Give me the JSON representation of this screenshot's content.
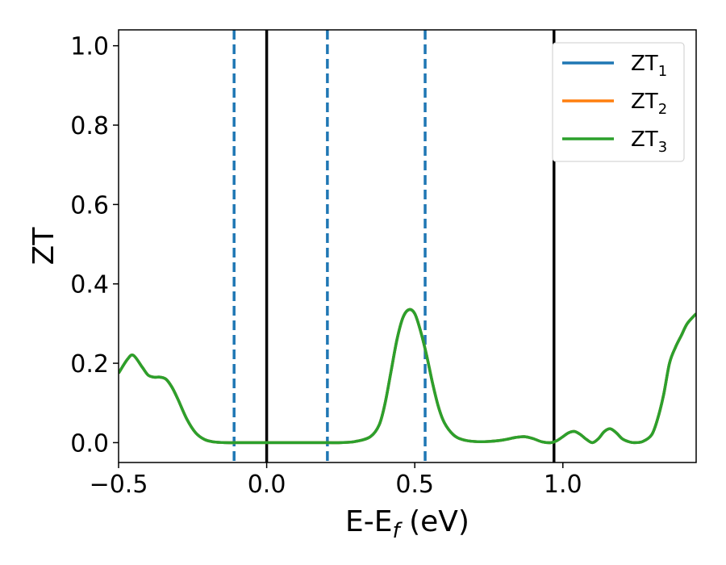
{
  "chart_data": {
    "type": "line",
    "title": "",
    "xlabel": "E-E",
    "xlabel_sub": "f",
    "xlabel_unit": " (eV)",
    "ylabel": "ZT",
    "xlim": [
      -0.5,
      1.45
    ],
    "ylim": [
      -0.05,
      1.04
    ],
    "xticks": [
      -0.5,
      0.0,
      0.5,
      1.0
    ],
    "xtick_labels": [
      "−0.5",
      "0.0",
      "0.5",
      "1.0"
    ],
    "yticks": [
      0.0,
      0.2,
      0.4,
      0.6,
      0.8,
      1.0
    ],
    "ytick_labels": [
      "0.0",
      "0.2",
      "0.4",
      "0.6",
      "0.8",
      "1.0"
    ],
    "grid": false,
    "legend_position": "top-right",
    "vlines_solid": [
      0.0,
      0.97
    ],
    "vlines_dashed": [
      -0.11,
      0.205,
      0.535
    ],
    "colors": {
      "ZT1": "#1f77b4",
      "ZT2": "#ff7f0e",
      "ZT3": "#2ca02c",
      "vline_solid": "#000000",
      "vline_dashed": "#1f77b4"
    },
    "series": [
      {
        "name": "ZT",
        "sub": "1",
        "color": "#1f77b4",
        "x": [
          -0.5,
          -0.47,
          -0.45,
          -0.42,
          -0.4,
          -0.38,
          -0.36,
          -0.34,
          -0.32,
          -0.3,
          -0.27,
          -0.24,
          -0.21,
          -0.18,
          -0.14,
          -0.1,
          -0.05,
          0.0,
          0.1,
          0.2,
          0.25,
          0.3,
          0.35,
          0.38,
          0.4,
          0.42,
          0.44,
          0.46,
          0.48,
          0.5,
          0.52,
          0.54,
          0.56,
          0.58,
          0.6,
          0.63,
          0.66,
          0.7,
          0.75,
          0.8,
          0.84,
          0.87,
          0.9,
          0.93,
          0.96,
          0.98,
          1.0,
          1.02,
          1.04,
          1.06,
          1.08,
          1.1,
          1.12,
          1.14,
          1.16,
          1.18,
          1.2,
          1.22,
          1.24,
          1.27,
          1.3,
          1.32,
          1.34,
          1.36,
          1.38,
          1.4,
          1.42,
          1.45
        ],
        "values": [
          0.175,
          0.21,
          0.22,
          0.19,
          0.17,
          0.165,
          0.165,
          0.16,
          0.14,
          0.11,
          0.06,
          0.025,
          0.008,
          0.002,
          0.0,
          0.0,
          0.0,
          0.0,
          0.0,
          0.0,
          0.0,
          0.003,
          0.015,
          0.045,
          0.1,
          0.18,
          0.26,
          0.315,
          0.335,
          0.325,
          0.28,
          0.22,
          0.15,
          0.09,
          0.05,
          0.02,
          0.008,
          0.003,
          0.003,
          0.007,
          0.013,
          0.015,
          0.01,
          0.002,
          0.0,
          0.005,
          0.015,
          0.025,
          0.028,
          0.02,
          0.008,
          0.0,
          0.01,
          0.028,
          0.035,
          0.025,
          0.01,
          0.003,
          0.0,
          0.003,
          0.02,
          0.06,
          0.12,
          0.2,
          0.24,
          0.27,
          0.3,
          0.325
        ]
      },
      {
        "name": "ZT",
        "sub": "2",
        "color": "#ff7f0e",
        "x": [
          -0.5,
          -0.47,
          -0.45,
          -0.42,
          -0.4,
          -0.38,
          -0.36,
          -0.34,
          -0.32,
          -0.3,
          -0.27,
          -0.24,
          -0.21,
          -0.18,
          -0.14,
          -0.1,
          -0.05,
          0.0,
          0.1,
          0.2,
          0.25,
          0.3,
          0.35,
          0.38,
          0.4,
          0.42,
          0.44,
          0.46,
          0.48,
          0.5,
          0.52,
          0.54,
          0.56,
          0.58,
          0.6,
          0.63,
          0.66,
          0.7,
          0.75,
          0.8,
          0.84,
          0.87,
          0.9,
          0.93,
          0.96,
          0.98,
          1.0,
          1.02,
          1.04,
          1.06,
          1.08,
          1.1,
          1.12,
          1.14,
          1.16,
          1.18,
          1.2,
          1.22,
          1.24,
          1.27,
          1.3,
          1.32,
          1.34,
          1.36,
          1.38,
          1.4,
          1.42,
          1.45
        ],
        "values": [
          0.175,
          0.21,
          0.22,
          0.19,
          0.17,
          0.165,
          0.165,
          0.16,
          0.14,
          0.11,
          0.06,
          0.025,
          0.008,
          0.002,
          0.0,
          0.0,
          0.0,
          0.0,
          0.0,
          0.0,
          0.0,
          0.003,
          0.015,
          0.045,
          0.1,
          0.18,
          0.26,
          0.315,
          0.335,
          0.325,
          0.28,
          0.22,
          0.15,
          0.09,
          0.05,
          0.02,
          0.008,
          0.003,
          0.003,
          0.007,
          0.013,
          0.015,
          0.01,
          0.002,
          0.0,
          0.005,
          0.015,
          0.025,
          0.028,
          0.02,
          0.008,
          0.0,
          0.01,
          0.028,
          0.035,
          0.025,
          0.01,
          0.003,
          0.0,
          0.003,
          0.02,
          0.06,
          0.12,
          0.2,
          0.24,
          0.27,
          0.3,
          0.325
        ]
      },
      {
        "name": "ZT",
        "sub": "3",
        "color": "#2ca02c",
        "x": [
          -0.5,
          -0.47,
          -0.45,
          -0.42,
          -0.4,
          -0.38,
          -0.36,
          -0.34,
          -0.32,
          -0.3,
          -0.27,
          -0.24,
          -0.21,
          -0.18,
          -0.14,
          -0.1,
          -0.05,
          0.0,
          0.1,
          0.2,
          0.25,
          0.3,
          0.35,
          0.38,
          0.4,
          0.42,
          0.44,
          0.46,
          0.48,
          0.5,
          0.52,
          0.54,
          0.56,
          0.58,
          0.6,
          0.63,
          0.66,
          0.7,
          0.75,
          0.8,
          0.84,
          0.87,
          0.9,
          0.93,
          0.96,
          0.98,
          1.0,
          1.02,
          1.04,
          1.06,
          1.08,
          1.1,
          1.12,
          1.14,
          1.16,
          1.18,
          1.2,
          1.22,
          1.24,
          1.27,
          1.3,
          1.32,
          1.34,
          1.36,
          1.38,
          1.4,
          1.42,
          1.45
        ],
        "values": [
          0.175,
          0.21,
          0.22,
          0.19,
          0.17,
          0.165,
          0.165,
          0.16,
          0.14,
          0.11,
          0.06,
          0.025,
          0.008,
          0.002,
          0.0,
          0.0,
          0.0,
          0.0,
          0.0,
          0.0,
          0.0,
          0.003,
          0.015,
          0.045,
          0.1,
          0.18,
          0.26,
          0.315,
          0.335,
          0.325,
          0.28,
          0.22,
          0.15,
          0.09,
          0.05,
          0.02,
          0.008,
          0.003,
          0.003,
          0.007,
          0.013,
          0.015,
          0.01,
          0.002,
          0.0,
          0.005,
          0.015,
          0.025,
          0.028,
          0.02,
          0.008,
          0.0,
          0.01,
          0.028,
          0.035,
          0.025,
          0.01,
          0.003,
          0.0,
          0.003,
          0.02,
          0.06,
          0.12,
          0.2,
          0.24,
          0.27,
          0.3,
          0.325
        ]
      }
    ]
  }
}
